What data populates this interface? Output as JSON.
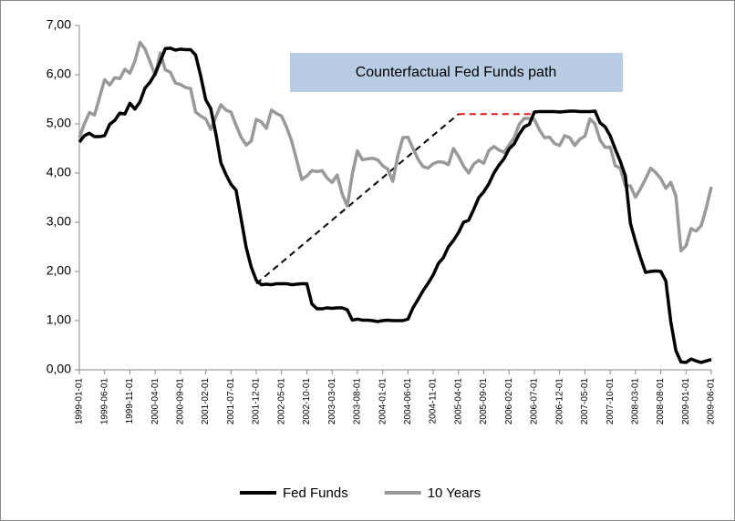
{
  "chart_data": {
    "type": "line",
    "annotation": "Counterfactual Fed Funds path",
    "categories": [
      "1999-01-01",
      null,
      null,
      null,
      null,
      "1999-06-01",
      null,
      null,
      null,
      null,
      "1999-11-01",
      null,
      null,
      null,
      null,
      "2000-04-01",
      null,
      null,
      null,
      null,
      "2000-09-01",
      null,
      null,
      null,
      null,
      "2001-02-01",
      null,
      null,
      null,
      null,
      "2001-07-01",
      null,
      null,
      null,
      null,
      "2001-12-01",
      null,
      null,
      null,
      null,
      "2002-05-01",
      null,
      null,
      null,
      null,
      "2002-10-01",
      null,
      null,
      null,
      null,
      "2003-03-01",
      null,
      null,
      null,
      null,
      "2003-08-01",
      null,
      null,
      null,
      null,
      "2004-01-01",
      null,
      null,
      null,
      null,
      "2004-06-01",
      null,
      null,
      null,
      null,
      "2004-11-01",
      null,
      null,
      null,
      null,
      "2005-04-01",
      null,
      null,
      null,
      null,
      "2005-09-01",
      null,
      null,
      null,
      null,
      "2006-02-01",
      null,
      null,
      null,
      null,
      "2006-07-01",
      null,
      null,
      null,
      null,
      "2006-12-01",
      null,
      null,
      null,
      null,
      "2007-05-01",
      null,
      null,
      null,
      null,
      "2007-10-01",
      null,
      null,
      null,
      null,
      "2008-03-01",
      null,
      null,
      null,
      null,
      "2008-08-01",
      null,
      null,
      null,
      null,
      "2009-01-01",
      null,
      null,
      null,
      null,
      "2009-06-01"
    ],
    "series": [
      {
        "name": "Fed Funds",
        "color": "#000000",
        "values": [
          4.63,
          4.76,
          4.81,
          4.74,
          4.74,
          4.76,
          4.99,
          5.07,
          5.22,
          5.2,
          5.42,
          5.3,
          5.45,
          5.73,
          5.85,
          6.02,
          6.27,
          6.53,
          6.54,
          6.5,
          6.52,
          6.51,
          6.51,
          6.4,
          5.98,
          5.49,
          5.31,
          4.8,
          4.21,
          3.97,
          3.77,
          3.65,
          3.07,
          2.49,
          2.09,
          1.82,
          1.73,
          1.74,
          1.73,
          1.75,
          1.75,
          1.75,
          1.73,
          1.74,
          1.75,
          1.75,
          1.34,
          1.24,
          1.24,
          1.26,
          1.25,
          1.26,
          1.26,
          1.22,
          1.01,
          1.03,
          1.01,
          1.01,
          1.0,
          0.98,
          1.0,
          1.01,
          1.0,
          1.0,
          1.0,
          1.03,
          1.26,
          1.43,
          1.61,
          1.76,
          1.93,
          2.16,
          2.28,
          2.5,
          2.63,
          2.79,
          3.0,
          3.04,
          3.26,
          3.5,
          3.62,
          3.78,
          4.0,
          4.16,
          4.29,
          4.49,
          4.59,
          4.79,
          4.94,
          4.99,
          5.24,
          5.25,
          5.25,
          5.25,
          5.25,
          5.24,
          5.25,
          5.26,
          5.26,
          5.25,
          5.25,
          5.25,
          5.26,
          5.02,
          4.94,
          4.76,
          4.49,
          4.24,
          3.94,
          2.98,
          2.61,
          2.28,
          1.98,
          2.0,
          2.01,
          2.0,
          1.81,
          0.97,
          0.39,
          0.16,
          0.15,
          0.22,
          0.18,
          0.15,
          0.18,
          0.21
        ]
      },
      {
        "name": "10 Years",
        "color": "#999999",
        "values": [
          4.72,
          5.0,
          5.23,
          5.18,
          5.54,
          5.9,
          5.79,
          5.94,
          5.92,
          6.11,
          6.03,
          6.28,
          6.66,
          6.52,
          6.26,
          5.99,
          6.44,
          6.1,
          6.05,
          5.83,
          5.8,
          5.74,
          5.72,
          5.24,
          5.16,
          5.1,
          4.89,
          5.14,
          5.39,
          5.28,
          5.24,
          4.97,
          4.73,
          4.57,
          4.65,
          5.09,
          5.04,
          4.91,
          5.28,
          5.21,
          5.16,
          4.93,
          4.65,
          4.26,
          3.87,
          3.94,
          4.05,
          4.03,
          4.05,
          3.9,
          3.81,
          3.96,
          3.57,
          3.33,
          3.98,
          4.45,
          4.27,
          4.29,
          4.3,
          4.27,
          4.15,
          4.08,
          3.83,
          4.35,
          4.72,
          4.73,
          4.5,
          4.28,
          4.13,
          4.1,
          4.19,
          4.23,
          4.22,
          4.17,
          4.5,
          4.34,
          4.14,
          4.0,
          4.18,
          4.26,
          4.2,
          4.46,
          4.54,
          4.47,
          4.42,
          4.57,
          4.72,
          4.99,
          5.11,
          5.11,
          5.09,
          4.88,
          4.72,
          4.73,
          4.6,
          4.56,
          4.76,
          4.72,
          4.56,
          4.69,
          4.75,
          5.1,
          5.0,
          4.67,
          4.52,
          4.53,
          4.15,
          4.1,
          3.74,
          3.74,
          3.51,
          3.68,
          3.88,
          4.1,
          4.01,
          3.89,
          3.69,
          3.81,
          3.53,
          2.42,
          2.52,
          2.87,
          2.82,
          2.93,
          3.29,
          3.72
        ]
      }
    ],
    "counterfactual": [
      {
        "x": [
          "2001-12-01",
          "2005-04-01"
        ],
        "values": [
          1.75,
          5.2
        ],
        "color": "#000000"
      },
      {
        "x": [
          "2005-04-01",
          "2006-07-01"
        ],
        "values": [
          5.2,
          5.2
        ],
        "color": "#e8191c"
      }
    ],
    "ylim": [
      0,
      7
    ],
    "yticks": [
      {
        "value": 0,
        "label": "0,00"
      },
      {
        "value": 1,
        "label": "1,00"
      },
      {
        "value": 2,
        "label": "2,00"
      },
      {
        "value": 3,
        "label": "3,00"
      },
      {
        "value": 4,
        "label": "4,00"
      },
      {
        "value": 5,
        "label": "5,00"
      },
      {
        "value": 6,
        "label": "6,00"
      },
      {
        "value": 7,
        "label": "7,00"
      }
    ],
    "grid": false,
    "legend": "bottom"
  }
}
